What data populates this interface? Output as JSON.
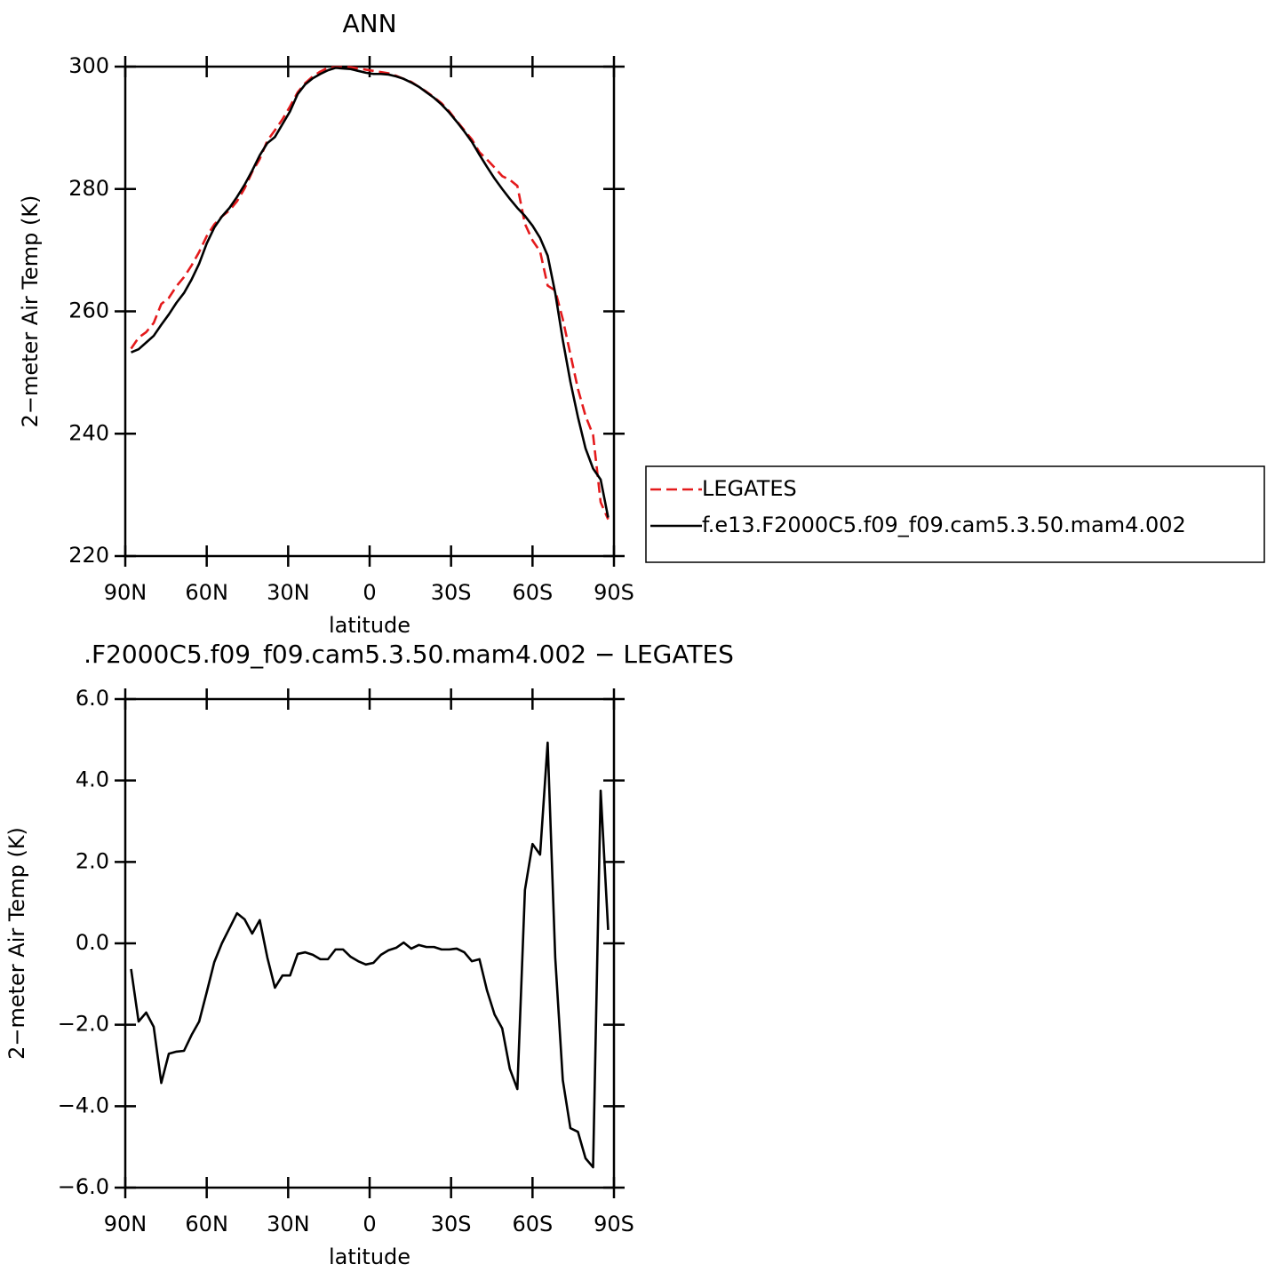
{
  "chart_data": [
    {
      "type": "line",
      "title": "ANN",
      "x_label": "latitude",
      "y_label": "2−meter Air Temp (K)",
      "x": [
        87.86,
        85.1,
        82.31,
        79.53,
        76.74,
        73.95,
        71.16,
        68.37,
        65.58,
        62.79,
        60.0,
        57.21,
        54.42,
        51.63,
        48.84,
        46.04,
        43.25,
        40.46,
        37.67,
        34.88,
        32.09,
        29.3,
        26.51,
        23.72,
        20.93,
        18.14,
        15.35,
        12.56,
        9.77,
        6.98,
        4.19,
        1.4,
        -1.4,
        -4.19,
        -6.98,
        -9.77,
        -12.56,
        -15.35,
        -18.14,
        -20.93,
        -23.72,
        -26.51,
        -29.3,
        -32.09,
        -34.88,
        -37.67,
        -40.46,
        -43.25,
        -46.04,
        -48.84,
        -51.63,
        -54.42,
        -57.21,
        -60.0,
        -62.79,
        -65.58,
        -68.37,
        -71.16,
        -73.95,
        -76.74,
        -79.53,
        -82.31,
        -85.1,
        -87.86
      ],
      "series": [
        {
          "name": "LEGATES",
          "color": "#e41a1c",
          "line_style": "dashed",
          "values": [
            253.9,
            255.7,
            256.6,
            258.1,
            261.2,
            262.2,
            264.1,
            265.6,
            267.5,
            269.7,
            272.3,
            274.2,
            275.5,
            276.5,
            278.0,
            280.1,
            282.8,
            284.9,
            287.9,
            289.6,
            291.4,
            293.5,
            295.8,
            297.3,
            298.4,
            299.2,
            299.8,
            299.9,
            299.9,
            299.9,
            299.7,
            299.5,
            299.3,
            299.1,
            298.9,
            298.5,
            298.0,
            297.5,
            296.7,
            295.9,
            295.0,
            294.0,
            292.7,
            291.1,
            289.6,
            288.1,
            286.0,
            284.8,
            283.5,
            282.1,
            281.5,
            280.5,
            274.3,
            271.6,
            269.8,
            264.2,
            263.4,
            258.7,
            253.0,
            247.3,
            242.9,
            239.8,
            228.8,
            226.0
          ]
        },
        {
          "name": "f.e13.F2000C5.f09_f09.cam5.3.50.mam4.002",
          "color": "#000000",
          "line_style": "solid",
          "values": [
            253.3,
            253.8,
            254.9,
            256.0,
            257.8,
            259.5,
            261.4,
            263.0,
            265.2,
            267.8,
            271.1,
            273.7,
            275.5,
            276.9,
            278.7,
            280.7,
            283.0,
            285.5,
            287.5,
            288.5,
            290.6,
            292.7,
            295.5,
            297.1,
            298.1,
            298.8,
            299.4,
            299.8,
            299.7,
            299.6,
            299.3,
            299.0,
            298.8,
            298.8,
            298.7,
            298.4,
            298.0,
            297.4,
            296.7,
            295.8,
            294.9,
            293.8,
            292.5,
            291.0,
            289.4,
            287.7,
            285.6,
            283.6,
            281.7,
            280.0,
            278.4,
            276.9,
            275.6,
            274.0,
            272.0,
            269.1,
            263.0,
            255.3,
            248.5,
            242.7,
            237.6,
            234.3,
            232.5,
            226.3
          ]
        }
      ],
      "xlim": [
        90,
        -90
      ],
      "xticks": [
        {
          "value": 90,
          "label": "90N"
        },
        {
          "value": 60,
          "label": "60N"
        },
        {
          "value": 30,
          "label": "30N"
        },
        0,
        {
          "value": -30,
          "label": "30S"
        },
        {
          "value": -60,
          "label": "60S"
        },
        {
          "value": -90,
          "label": "90S"
        }
      ],
      "ylim": [
        220,
        300
      ],
      "yticks": [
        220,
        240,
        260,
        280,
        300
      ],
      "legend": "right"
    },
    {
      "type": "line",
      "title": ".F2000C5.f09_f09.cam5.3.50.mam4.002 − LEGATES",
      "x_label": "latitude",
      "y_label": "2−meter Air Temp (K)",
      "x": [
        87.86,
        85.1,
        82.31,
        79.53,
        76.74,
        73.95,
        71.16,
        68.37,
        65.58,
        62.79,
        60.0,
        57.21,
        54.42,
        51.63,
        48.84,
        46.04,
        43.25,
        40.46,
        37.67,
        34.88,
        32.09,
        29.3,
        26.51,
        23.72,
        20.93,
        18.14,
        15.35,
        12.56,
        9.77,
        6.98,
        4.19,
        1.4,
        -1.4,
        -4.19,
        -6.98,
        -9.77,
        -12.56,
        -15.35,
        -18.14,
        -20.93,
        -23.72,
        -26.51,
        -29.3,
        -32.09,
        -34.88,
        -37.67,
        -40.46,
        -43.25,
        -46.04,
        -48.84,
        -51.63,
        -54.42,
        -57.21,
        -60.0,
        -62.79,
        -65.58,
        -68.37,
        -71.16,
        -73.95,
        -76.74,
        -79.53,
        -82.31,
        -85.1,
        -87.86
      ],
      "values": [
        -0.63,
        -1.92,
        -1.7,
        -2.05,
        -3.43,
        -2.71,
        -2.66,
        -2.64,
        -2.25,
        -1.92,
        -1.2,
        -0.46,
        0,
        0.37,
        0.74,
        0.59,
        0.24,
        0.57,
        -0.35,
        -1.09,
        -0.79,
        -0.79,
        -0.26,
        -0.22,
        -0.28,
        -0.39,
        -0.39,
        -0.15,
        -0.15,
        -0.33,
        -0.44,
        -0.52,
        -0.48,
        -0.28,
        -0.17,
        -0.11,
        0.02,
        -0.13,
        -0.04,
        -0.09,
        -0.09,
        -0.15,
        -0.15,
        -0.13,
        -0.22,
        -0.44,
        -0.39,
        -1.16,
        -1.75,
        -2.09,
        -3.08,
        -3.58,
        1.31,
        2.44,
        2.18,
        4.93,
        -0.35,
        -3.36,
        -4.54,
        -4.63,
        -5.28,
        -5.5,
        3.75,
        0.33
      ],
      "color": "#000000",
      "xlim": [
        90,
        -90
      ],
      "xticks": [
        {
          "value": 90,
          "label": "90N"
        },
        {
          "value": 60,
          "label": "60N"
        },
        {
          "value": 30,
          "label": "30N"
        },
        0,
        {
          "value": -30,
          "label": "30S"
        },
        {
          "value": -60,
          "label": "60S"
        },
        {
          "value": -90,
          "label": "90S"
        }
      ],
      "ylim": [
        -6,
        6
      ],
      "yticks": [
        {
          "value": -6,
          "label": "−6.0"
        },
        {
          "value": -4,
          "label": "−4.0"
        },
        {
          "value": -2,
          "label": "−2.0"
        },
        {
          "value": 0,
          "label": "0.0"
        },
        {
          "value": 2,
          "label": "2.0"
        },
        {
          "value": 4,
          "label": "4.0"
        },
        {
          "value": 6,
          "label": "6.0"
        }
      ]
    }
  ]
}
